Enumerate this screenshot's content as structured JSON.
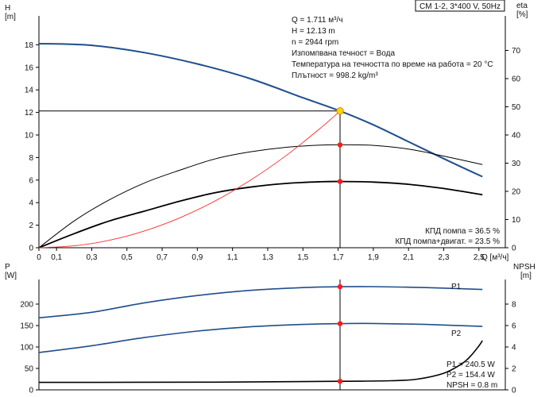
{
  "header": {
    "pump_label": "CM 1-2, 3*400 V, 50Hz"
  },
  "chart_data": [
    {
      "type": "line",
      "name": "pump-curve",
      "xlabel": "Q [м³/ч]",
      "ylabel": "H",
      "ylabel_unit": "[m]",
      "y2label": "eta",
      "y2label_unit": "[%]",
      "xlim": [
        0,
        2.65
      ],
      "ylim": [
        0,
        20
      ],
      "y2lim": [
        0,
        80
      ],
      "x_ticks": [
        0,
        0.1,
        0.3,
        0.5,
        0.7,
        0.9,
        1.1,
        1.3,
        1.5,
        1.7,
        1.9,
        2.1,
        2.3,
        2.5
      ],
      "x_tick_labels": [
        "0",
        "0,1",
        "0,3",
        "0,5",
        "0,7",
        "0,9",
        "1,1",
        "1,3",
        "1,5",
        "1,7",
        "1,9",
        "2,1",
        "2,3",
        "2,5"
      ],
      "y_ticks": [
        0,
        2,
        4,
        6,
        8,
        10,
        12,
        14,
        16,
        18
      ],
      "y2_ticks": [
        0,
        10,
        20,
        30,
        40,
        50,
        60,
        70
      ],
      "grid": false,
      "series": [
        {
          "key": "H",
          "axis": "left",
          "color": "#1f4e8c",
          "points": [
            [
              0,
              18.1
            ],
            [
              0.3,
              17.95
            ],
            [
              0.6,
              17.3
            ],
            [
              0.9,
              16.3
            ],
            [
              1.2,
              15.0
            ],
            [
              1.5,
              13.3
            ],
            [
              1.711,
              12.13
            ],
            [
              1.9,
              10.9
            ],
            [
              2.1,
              9.4
            ],
            [
              2.3,
              7.9
            ],
            [
              2.52,
              6.3
            ]
          ]
        },
        {
          "key": "eta-pump",
          "axis": "right",
          "color": "#000000",
          "points": [
            [
              0,
              0
            ],
            [
              0.2,
              9.5
            ],
            [
              0.4,
              17
            ],
            [
              0.6,
              23
            ],
            [
              0.8,
              27.5
            ],
            [
              1.0,
              31.5
            ],
            [
              1.2,
              34
            ],
            [
              1.4,
              35.6
            ],
            [
              1.6,
              36.4
            ],
            [
              1.711,
              36.5
            ],
            [
              1.9,
              36.3
            ],
            [
              2.1,
              35.0
            ],
            [
              2.3,
              32.5
            ],
            [
              2.52,
              29.5
            ]
          ]
        },
        {
          "key": "eta-total",
          "axis": "right",
          "color": "#000000",
          "points": [
            [
              0,
              0
            ],
            [
              0.2,
              5
            ],
            [
              0.4,
              9.5
            ],
            [
              0.6,
              13
            ],
            [
              0.8,
              16.5
            ],
            [
              1.0,
              19.5
            ],
            [
              1.2,
              21.5
            ],
            [
              1.4,
              22.8
            ],
            [
              1.6,
              23.4
            ],
            [
              1.711,
              23.5
            ],
            [
              1.9,
              23.3
            ],
            [
              2.1,
              22.5
            ],
            [
              2.3,
              21.0
            ],
            [
              2.52,
              18.8
            ]
          ]
        },
        {
          "key": "system",
          "axis": "left",
          "color": "#ff2a2a",
          "points": [
            [
              0,
              0
            ],
            [
              0.2,
              0.17
            ],
            [
              0.4,
              0.66
            ],
            [
              0.6,
              1.49
            ],
            [
              0.8,
              2.65
            ],
            [
              1.0,
              4.14
            ],
            [
              1.2,
              5.97
            ],
            [
              1.4,
              8.12
            ],
            [
              1.6,
              10.61
            ],
            [
              1.711,
              12.13
            ]
          ]
        }
      ],
      "duty_point": {
        "x": 1.711,
        "y": 12.13
      },
      "efficiency_markers": [
        {
          "x": 1.711,
          "y": 36.5
        },
        {
          "x": 1.711,
          "y": 23.5
        }
      ],
      "info_box": [
        "Q = 1.711 м³/ч",
        "H = 12.13 m",
        "n = 2944 rpm",
        "Изпомпвана течност = Вода",
        "Температура на течността по време на работа = 20 °C",
        "Плътност = 998.2 kg/m³"
      ],
      "efficiency_labels": [
        "КПД помпа = 36.5 %",
        "КПД помпа+двигат. = 23.5 %"
      ]
    },
    {
      "type": "line",
      "name": "power-npsh",
      "ylabel": "P",
      "ylabel_unit": "[W]",
      "y2label": "NPSH",
      "y2label_unit": "[m]",
      "xlim": [
        0,
        2.65
      ],
      "ylim": [
        0,
        250
      ],
      "y2lim": [
        0,
        10
      ],
      "y_ticks": [
        0,
        50,
        100,
        150,
        200
      ],
      "y2_ticks": [
        0,
        2,
        4,
        6,
        8
      ],
      "series": [
        {
          "key": "P1",
          "name": "P1",
          "axis": "left",
          "color": "#1f4e8c",
          "points": [
            [
              0,
              168
            ],
            [
              0.3,
              181
            ],
            [
              0.6,
              203
            ],
            [
              0.9,
              220
            ],
            [
              1.2,
              232
            ],
            [
              1.5,
              238.5
            ],
            [
              1.711,
              240.5
            ],
            [
              1.9,
              240.7
            ],
            [
              2.2,
              238.5
            ],
            [
              2.52,
              234
            ]
          ]
        },
        {
          "key": "P2",
          "name": "P2",
          "axis": "left",
          "color": "#1f4e8c",
          "points": [
            [
              0,
              87
            ],
            [
              0.3,
              103
            ],
            [
              0.6,
              122
            ],
            [
              0.9,
              137
            ],
            [
              1.2,
              147
            ],
            [
              1.5,
              152.5
            ],
            [
              1.711,
              154.4
            ],
            [
              1.9,
              154.8
            ],
            [
              2.2,
              152.5
            ],
            [
              2.52,
              148
            ]
          ]
        },
        {
          "key": "NPSH",
          "axis": "right",
          "color": "#000000",
          "points": [
            [
              0,
              0.7
            ],
            [
              1.0,
              0.72
            ],
            [
              1.711,
              0.8
            ],
            [
              2.0,
              0.85
            ],
            [
              2.15,
              1.0
            ],
            [
              2.3,
              1.55
            ],
            [
              2.4,
              2.4
            ],
            [
              2.45,
              3.1
            ],
            [
              2.5,
              4.1
            ],
            [
              2.52,
              4.6
            ]
          ]
        }
      ],
      "markers": [
        {
          "x": 1.711,
          "y": 240.5,
          "axis": "left"
        },
        {
          "x": 1.711,
          "y": 154.4,
          "axis": "left"
        },
        {
          "x": 1.711,
          "y": 0.8,
          "axis": "right"
        }
      ],
      "info_box": [
        "P1 = 240.5 W",
        "P2 = 154.4 W",
        "NPSH = 0.8 m"
      ]
    }
  ]
}
